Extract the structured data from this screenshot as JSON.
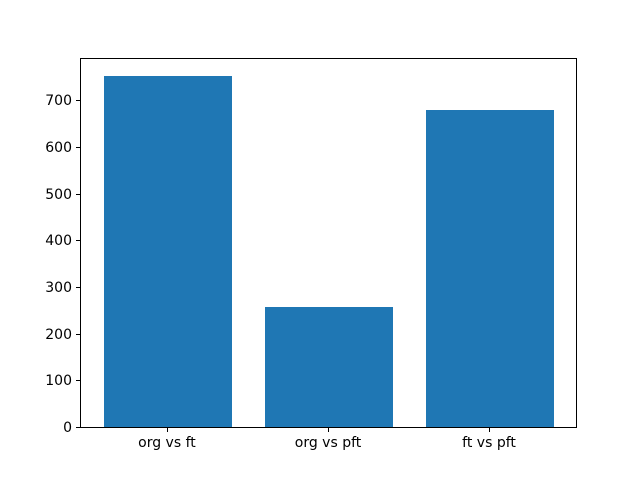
{
  "chart_data": {
    "type": "bar",
    "categories": [
      "org vs ft",
      "org vs pft",
      "ft vs pft"
    ],
    "values": [
      753,
      258,
      680
    ],
    "title": "",
    "xlabel": "",
    "ylabel": "",
    "ylim": [
      0,
      791
    ],
    "yticks": [
      0,
      100,
      200,
      300,
      400,
      500,
      600,
      700
    ],
    "bar_color": "#1f77b4",
    "axis_color": "#000000",
    "background_color": "#ffffff",
    "grid": false,
    "legend": null
  }
}
